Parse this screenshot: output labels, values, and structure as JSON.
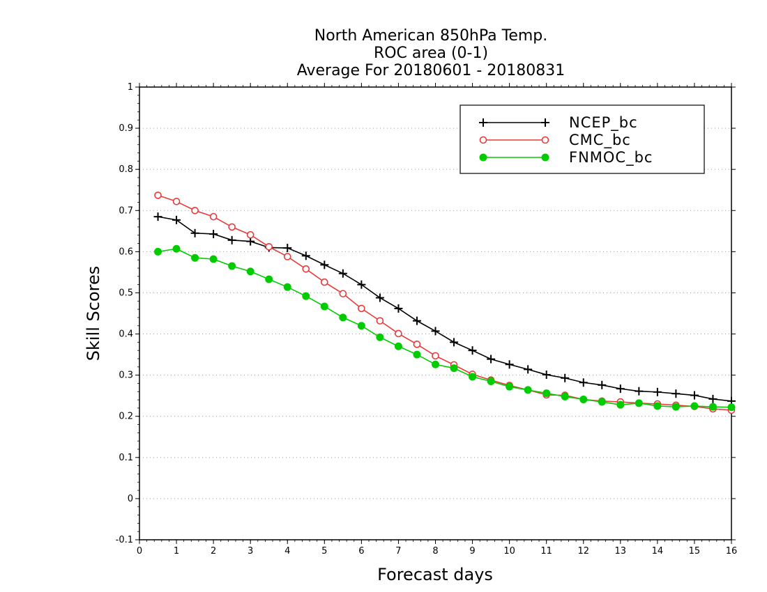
{
  "chart_data": {
    "type": "line",
    "title": [
      "North American 850hPa Temp.",
      "ROC area (0-1)",
      "Average For 20180601 - 20180831"
    ],
    "xlabel": "Forecast days",
    "ylabel": "Skill Scores",
    "xlim": [
      0,
      16
    ],
    "ylim": [
      -0.1,
      1
    ],
    "xticks": [
      0,
      1,
      2,
      3,
      4,
      5,
      6,
      7,
      8,
      9,
      10,
      11,
      12,
      13,
      14,
      15,
      16
    ],
    "xtick_labels": [
      "0",
      "1",
      "2",
      "3",
      "4",
      "5",
      "6",
      "7",
      "8",
      "9",
      "10",
      "11",
      "12",
      "13",
      "14",
      "15",
      "16"
    ],
    "yticks": [
      -0.1,
      0,
      0.1,
      0.2,
      0.3,
      0.4,
      0.5,
      0.6,
      0.7,
      0.8,
      0.9,
      1
    ],
    "ytick_labels": [
      "-0.1",
      "0",
      "0.1",
      "0.2",
      "0.3",
      "0.4",
      "0.5",
      "0.6",
      "0.7",
      "0.8",
      "0.9",
      "1"
    ],
    "grid": "horizontal-dotted",
    "legend_position": "top-right",
    "x": [
      0.5,
      1,
      1.5,
      2,
      2.5,
      3,
      3.5,
      4,
      4.5,
      5,
      5.5,
      6,
      6.5,
      7,
      7.5,
      8,
      8.5,
      9,
      9.5,
      10,
      10.5,
      11,
      11.5,
      12,
      12.5,
      13,
      13.5,
      14,
      14.5,
      15,
      15.5,
      16
    ],
    "series": [
      {
        "name": "NCEP_bc",
        "color": "#000000",
        "marker": "plus",
        "values": [
          0.685,
          0.677,
          0.645,
          0.643,
          0.628,
          0.625,
          0.61,
          0.609,
          0.59,
          0.568,
          0.547,
          0.52,
          0.488,
          0.462,
          0.432,
          0.407,
          0.38,
          0.36,
          0.339,
          0.326,
          0.314,
          0.301,
          0.293,
          0.282,
          0.276,
          0.267,
          0.261,
          0.259,
          0.255,
          0.251,
          0.242,
          0.237
        ]
      },
      {
        "name": "CMC_bc",
        "color": "#e83a3a",
        "marker": "open-circle",
        "values": [
          0.737,
          0.722,
          0.7,
          0.685,
          0.66,
          0.641,
          0.612,
          0.588,
          0.558,
          0.526,
          0.498,
          0.462,
          0.432,
          0.401,
          0.375,
          0.347,
          0.325,
          0.302,
          0.288,
          0.275,
          0.264,
          0.252,
          0.251,
          0.241,
          0.237,
          0.235,
          0.232,
          0.23,
          0.227,
          0.224,
          0.218,
          0.215
        ]
      },
      {
        "name": "FNMOC_bc",
        "color": "#00cc00",
        "marker": "filled-circle",
        "values": [
          0.6,
          0.607,
          0.585,
          0.582,
          0.565,
          0.552,
          0.533,
          0.514,
          0.492,
          0.467,
          0.44,
          0.42,
          0.392,
          0.37,
          0.35,
          0.326,
          0.317,
          0.296,
          0.285,
          0.272,
          0.264,
          0.256,
          0.248,
          0.241,
          0.235,
          0.228,
          0.232,
          0.225,
          0.223,
          0.225,
          0.223,
          0.222
        ]
      }
    ]
  }
}
